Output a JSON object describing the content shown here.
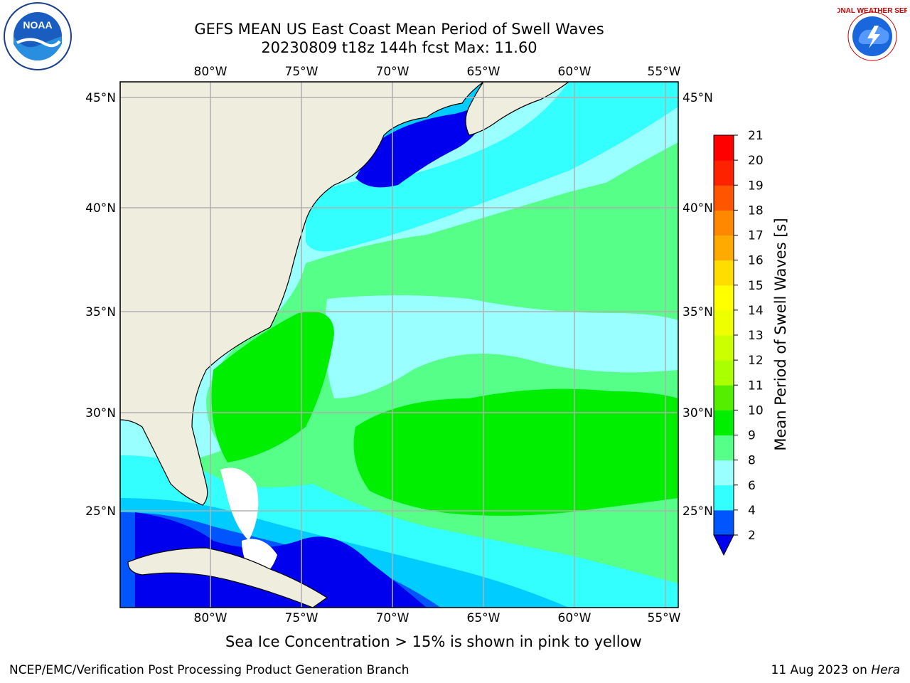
{
  "title": {
    "line1": "GEFS MEAN US East Coast Mean Period of Swell Waves",
    "line2": "20230809 t18z 144h fcst   Max: 11.60"
  },
  "map": {
    "lon_labels": [
      "80°W",
      "75°W",
      "70°W",
      "65°W",
      "60°W",
      "55°W"
    ],
    "lat_labels": [
      "45°N",
      "40°N",
      "35°N",
      "30°N",
      "25°N"
    ],
    "land_color": "#efedde",
    "grid_color": "#b0b0b0"
  },
  "colorbar": {
    "label": "Mean Period of Swell Waves [s]",
    "ticks": [
      "2",
      "4",
      "6",
      "8",
      "9",
      "10",
      "11",
      "12",
      "13",
      "14",
      "15",
      "16",
      "17",
      "18",
      "19",
      "20",
      "21"
    ],
    "colors": [
      "#0055ff",
      "#00ccff",
      "#33ffff",
      "#99ffff",
      "#55ff88",
      "#00ee00",
      "#55ee00",
      "#aaff00",
      "#ccff00",
      "#eeff00",
      "#ffff00",
      "#ffdd00",
      "#ffaa00",
      "#ff8800",
      "#ff5500",
      "#ff2200",
      "#ff0000"
    ],
    "under_color": "#0000ee"
  },
  "footer": {
    "sea_ice_note": "Sea Ice Concentration > 15% is shown in pink to yellow",
    "left": "NCEP/EMC/Verification Post Processing Product Generation Branch",
    "right_prefix": "11 Aug 2023 on ",
    "right_host": "Hera"
  },
  "logos": {
    "noaa_text": "NOAA",
    "nws_text": "NATIONAL WEATHER SERVICE"
  }
}
